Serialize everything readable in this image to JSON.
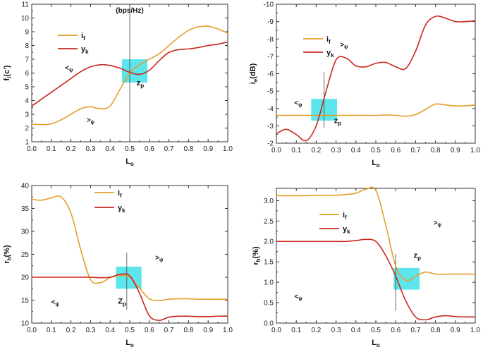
{
  "colors": {
    "if": "#E59E2B",
    "yk": "#C8281E",
    "box": "#3FE0E6"
  },
  "chart_data": [
    {
      "type": "line",
      "title": "(bps/Hz)",
      "xlabel": "L",
      "xlabel_sub": "o",
      "ylabel": "f",
      "ylabel_sub": "i",
      "ylabel_suffix": "(c')",
      "xlim": [
        0,
        1
      ],
      "ylim": [
        1,
        11
      ],
      "inverted_y": false,
      "xticks": [
        "0.0",
        "0.1",
        "0.2",
        "0.3",
        "0.4",
        "0.5",
        "0.6",
        "0.7",
        "0.8",
        "0.9",
        "1.0"
      ],
      "yticks": [
        "1",
        "2",
        "3",
        "4",
        "5",
        "6",
        "7",
        "8",
        "9",
        "10",
        "11"
      ],
      "ytick_values": [
        1,
        2,
        3,
        4,
        5,
        6,
        7,
        8,
        9,
        10,
        11
      ],
      "legend": [
        {
          "main": "i",
          "sub": "f",
          "color_key": "if"
        },
        {
          "main": "y",
          "sub": "k",
          "color_key": "yk"
        }
      ],
      "annotations": [
        {
          "main": "<",
          "sub": "ψ",
          "x": 0.17,
          "y": 6.2
        },
        {
          "main": ">",
          "sub": "ψ",
          "x": 0.28,
          "y": 2.4
        }
      ],
      "zp": {
        "main": "z",
        "sub": "p",
        "x": 0.535,
        "y": 5.1
      },
      "vline_x": 0.5,
      "box": {
        "x0": 0.46,
        "x1": 0.59,
        "y0": 5.3,
        "y1": 7.0
      },
      "series": [
        {
          "name": "if",
          "x": [
            0,
            0.05,
            0.1,
            0.15,
            0.2,
            0.25,
            0.3,
            0.35,
            0.4,
            0.45,
            0.5,
            0.55,
            0.6,
            0.65,
            0.7,
            0.75,
            0.8,
            0.85,
            0.9,
            0.95,
            1.0
          ],
          "values": [
            2.3,
            2.25,
            2.3,
            2.6,
            3.0,
            3.4,
            3.55,
            3.4,
            3.6,
            4.8,
            6.0,
            6.6,
            7.0,
            7.4,
            8.0,
            8.6,
            9.1,
            9.35,
            9.4,
            9.2,
            8.9
          ]
        },
        {
          "name": "yk",
          "x": [
            0,
            0.05,
            0.1,
            0.15,
            0.2,
            0.25,
            0.3,
            0.35,
            0.4,
            0.45,
            0.5,
            0.55,
            0.6,
            0.65,
            0.7,
            0.75,
            0.8,
            0.85,
            0.9,
            0.95,
            1.0
          ],
          "values": [
            3.6,
            4.1,
            4.6,
            5.1,
            5.6,
            6.1,
            6.45,
            6.6,
            6.55,
            6.35,
            6.05,
            5.9,
            6.2,
            6.9,
            7.5,
            7.7,
            7.75,
            7.85,
            8.0,
            8.1,
            8.25
          ]
        }
      ]
    },
    {
      "type": "line",
      "title": "",
      "xlabel": "L",
      "xlabel_sub": "o",
      "ylabel": "i",
      "ylabel_sub": "e",
      "ylabel_suffix": "(dB)",
      "xlim": [
        0,
        1
      ],
      "ylim": [
        -2,
        -10
      ],
      "inverted_y": true,
      "xticks": [
        "0.0",
        "0.1",
        "0.2",
        "0.3",
        "0.4",
        "0.5",
        "0.6",
        "0.7",
        "0.8",
        "0.9",
        "1.0"
      ],
      "yticks": [
        "-2",
        "-3",
        "-4",
        "-5",
        "-6",
        "-7",
        "-8",
        "-9",
        "-10"
      ],
      "ytick_values": [
        -2,
        -3,
        -4,
        -5,
        -6,
        -7,
        -8,
        -9,
        -10
      ],
      "legend": [
        {
          "main": "i",
          "sub": "f",
          "color_key": "if"
        },
        {
          "main": "y",
          "sub": "k",
          "color_key": "yk"
        }
      ],
      "annotations": [
        {
          "main": ">",
          "sub": "ψ",
          "x": 0.32,
          "y": -7.55
        },
        {
          "main": "<",
          "sub": "ψ",
          "x": 0.09,
          "y": -4.2
        }
      ],
      "zp": {
        "main": "z",
        "sub": "p",
        "x": 0.29,
        "y": -3.15
      },
      "vline_x": 0.24,
      "box": {
        "x0": 0.175,
        "x1": 0.305,
        "y0": -3.3,
        "y1": -4.55
      },
      "series": [
        {
          "name": "if",
          "x": [
            0,
            0.05,
            0.1,
            0.15,
            0.2,
            0.25,
            0.3,
            0.35,
            0.4,
            0.45,
            0.5,
            0.55,
            0.6,
            0.65,
            0.7,
            0.75,
            0.8,
            0.85,
            0.9,
            0.95,
            1.0
          ],
          "values": [
            -3.6,
            -3.6,
            -3.6,
            -3.6,
            -3.6,
            -3.6,
            -3.6,
            -3.6,
            -3.6,
            -3.6,
            -3.6,
            -3.62,
            -3.6,
            -3.55,
            -3.65,
            -3.95,
            -4.25,
            -4.2,
            -4.15,
            -4.15,
            -4.2
          ]
        },
        {
          "name": "yk",
          "x": [
            0,
            0.05,
            0.1,
            0.15,
            0.2,
            0.25,
            0.3,
            0.35,
            0.4,
            0.45,
            0.5,
            0.55,
            0.6,
            0.65,
            0.7,
            0.75,
            0.8,
            0.85,
            0.9,
            0.95,
            1.0
          ],
          "values": [
            -2.55,
            -2.8,
            -2.5,
            -2.15,
            -3.0,
            -5.0,
            -6.8,
            -6.9,
            -6.45,
            -6.4,
            -6.6,
            -6.65,
            -6.4,
            -6.3,
            -7.3,
            -8.8,
            -9.3,
            -9.2,
            -9.0,
            -9.0,
            -9.05
          ]
        }
      ]
    },
    {
      "type": "line",
      "title": "",
      "xlabel": "L",
      "xlabel_sub": "o",
      "ylabel": "r",
      "ylabel_sub": "h",
      "ylabel_suffix": "(%)",
      "xlim": [
        0,
        1
      ],
      "ylim": [
        10,
        40
      ],
      "inverted_y": false,
      "xticks": [
        "0.0",
        "0.1",
        "0.2",
        "0.3",
        "0.4",
        "0.5",
        "0.6",
        "0.7",
        "0.8",
        "0.9",
        "1.0"
      ],
      "yticks": [
        "10",
        "15",
        "20",
        "25",
        "30",
        "35",
        "40"
      ],
      "ytick_values": [
        10,
        15,
        20,
        25,
        30,
        35,
        40
      ],
      "legend": [
        {
          "main": "i",
          "sub": "f",
          "color_key": "if"
        },
        {
          "main": "y",
          "sub": "k",
          "color_key": "yk"
        }
      ],
      "annotations": [
        {
          "main": ">",
          "sub": "ψ",
          "x": 0.63,
          "y": 23.8
        },
        {
          "main": "<",
          "sub": "ψ",
          "x": 0.1,
          "y": 14.1
        }
      ],
      "zp": {
        "main": "Z",
        "sub": "p",
        "x": 0.44,
        "y": 14.2
      },
      "vline_x": 0.485,
      "box": {
        "x0": 0.43,
        "x1": 0.56,
        "y0": 17.5,
        "y1": 22.3
      },
      "series": [
        {
          "name": "if",
          "x": [
            0,
            0.05,
            0.1,
            0.15,
            0.2,
            0.25,
            0.3,
            0.35,
            0.4,
            0.45,
            0.5,
            0.55,
            0.6,
            0.65,
            0.7,
            0.75,
            0.8,
            0.85,
            0.9,
            0.95,
            1.0
          ],
          "values": [
            37,
            36.8,
            37.3,
            37.5,
            34.0,
            26.0,
            19.5,
            18.8,
            19.9,
            20.4,
            20.0,
            17.6,
            15.3,
            14.9,
            15.2,
            15.3,
            15.3,
            15.2,
            15.2,
            15.2,
            15.2
          ]
        },
        {
          "name": "yk",
          "x": [
            0,
            0.05,
            0.1,
            0.15,
            0.2,
            0.25,
            0.3,
            0.35,
            0.4,
            0.45,
            0.5,
            0.55,
            0.6,
            0.65,
            0.7,
            0.75,
            0.8,
            0.85,
            0.9,
            0.95,
            1.0
          ],
          "values": [
            20,
            20,
            20,
            20,
            20,
            20,
            20,
            19.9,
            20.0,
            20.6,
            20.3,
            16.5,
            11.6,
            10.6,
            11.3,
            11.5,
            11.5,
            11.4,
            11.4,
            11.5,
            11.5
          ]
        }
      ]
    },
    {
      "type": "line",
      "title": "",
      "xlabel": "L",
      "xlabel_sub": "o",
      "ylabel": "r",
      "ylabel_sub": "h",
      "ylabel_suffix": "(%)",
      "xlim": [
        0,
        1
      ],
      "ylim": [
        0,
        3.3
      ],
      "inverted_y": false,
      "xticks": [
        "0.0",
        "0.1",
        "0.2",
        "0.3",
        "0.4",
        "0.5",
        "0.6",
        "0.7",
        "0.8",
        "0.9",
        "1.0"
      ],
      "yticks": [
        "0.0",
        "0.5",
        "1.0",
        "1.5",
        "2.0",
        "2.5",
        "3.0"
      ],
      "ytick_values": [
        0,
        0.5,
        1,
        1.5,
        2,
        2.5,
        3
      ],
      "legend": [
        {
          "main": "i",
          "sub": "f",
          "color_key": "if"
        },
        {
          "main": "y",
          "sub": "k",
          "color_key": "yk"
        }
      ],
      "annotations": [
        {
          "main": ">",
          "sub": "ψ",
          "x": 0.79,
          "y": 2.4
        },
        {
          "main": "<",
          "sub": "ψ",
          "x": 0.09,
          "y": 0.6
        }
      ],
      "zp": {
        "main": "z",
        "sub": "p",
        "x": 0.69,
        "y": 1.6
      },
      "vline_x": 0.6,
      "box": {
        "x0": 0.59,
        "x1": 0.72,
        "y0": 0.82,
        "y1": 1.35
      },
      "series": [
        {
          "name": "if",
          "x": [
            0,
            0.05,
            0.1,
            0.15,
            0.2,
            0.25,
            0.3,
            0.35,
            0.4,
            0.45,
            0.5,
            0.55,
            0.6,
            0.65,
            0.7,
            0.75,
            0.8,
            0.85,
            0.9,
            0.95,
            1.0
          ],
          "values": [
            3.12,
            3.12,
            3.12,
            3.12,
            3.13,
            3.13,
            3.13,
            3.15,
            3.18,
            3.28,
            3.25,
            2.4,
            1.4,
            1.05,
            1.15,
            1.25,
            1.2,
            1.2,
            1.2,
            1.2,
            1.2
          ]
        },
        {
          "name": "yk",
          "x": [
            0,
            0.05,
            0.1,
            0.15,
            0.2,
            0.25,
            0.3,
            0.35,
            0.4,
            0.45,
            0.5,
            0.55,
            0.6,
            0.65,
            0.7,
            0.75,
            0.8,
            0.85,
            0.9,
            0.95,
            1.0
          ],
          "values": [
            2.0,
            2.0,
            2.0,
            2.0,
            2.0,
            2.0,
            2.0,
            2.0,
            2.02,
            2.05,
            2.0,
            1.65,
            1.15,
            0.55,
            0.15,
            0.08,
            0.15,
            0.18,
            0.16,
            0.15,
            0.15
          ]
        }
      ]
    }
  ]
}
